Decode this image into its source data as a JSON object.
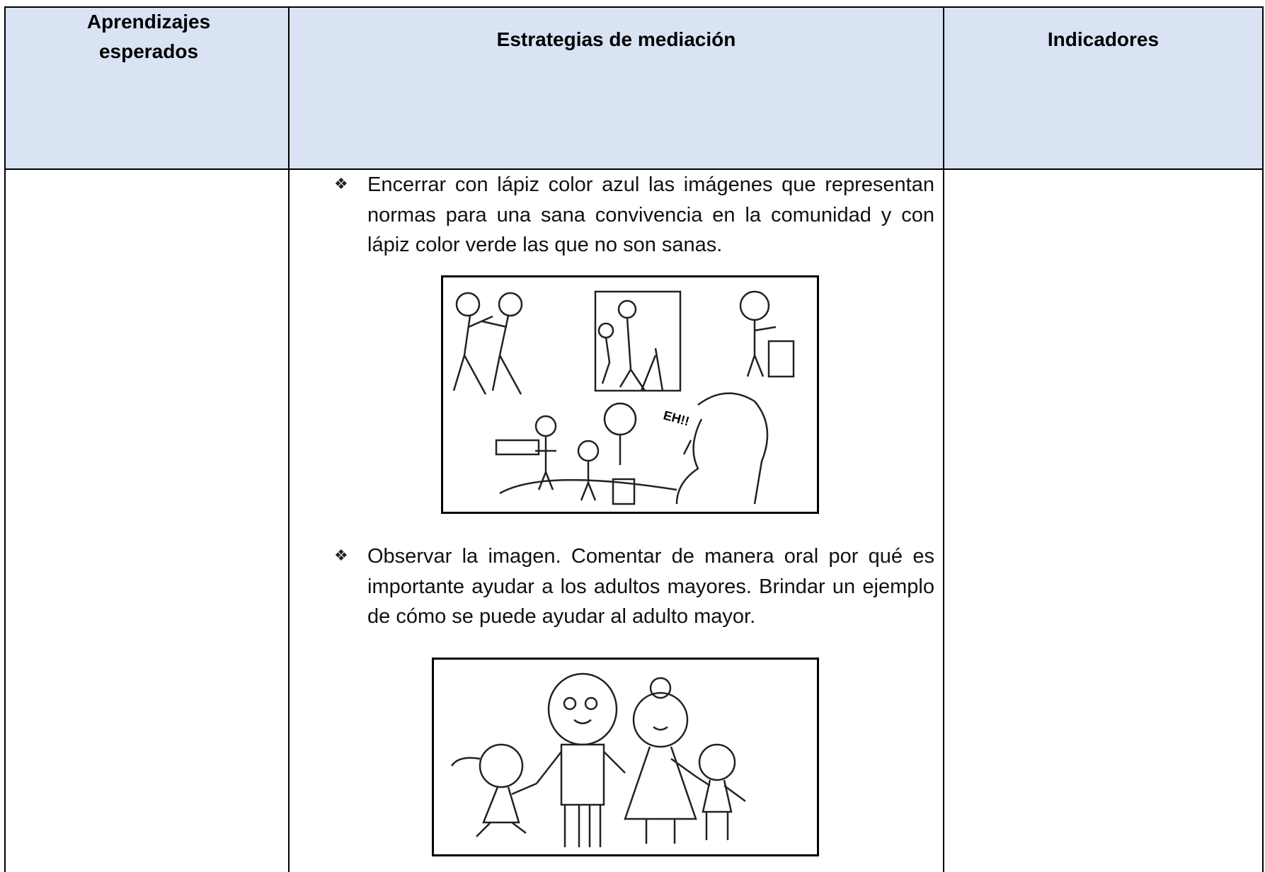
{
  "table": {
    "headers": [
      "Aprendizajes esperados",
      "Estrategias de mediación",
      "Indicadores"
    ],
    "items": [
      {
        "marker": "❖",
        "text": "Encerrar con lápiz color azul las imágenes que representan normas para una sana convivencia en la comunidad y con lápiz color verde las que no son sanas."
      },
      {
        "marker": "❖",
        "text": "Observar la imagen. Comentar de manera oral por qué es importante ayudar a los adultos mayores. Brindar un ejemplo de cómo se puede ayudar al adulto mayor."
      }
    ],
    "image_text": "EH!!"
  }
}
